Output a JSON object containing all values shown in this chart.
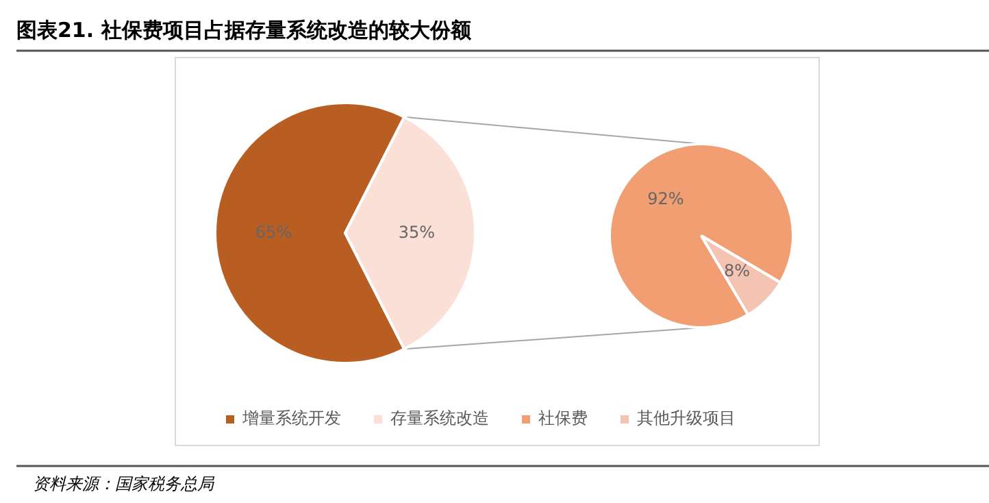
{
  "chart_data": [
    {
      "type": "pie",
      "title": "图表21. 社保费项目占据存量系统改造的较大份额",
      "categories": [
        "增量系统开发",
        "存量系统改造"
      ],
      "values": [
        65,
        35
      ],
      "colors": [
        "#b85e22",
        "#fbe0d8"
      ],
      "value_labels": [
        "65%",
        "35%"
      ],
      "legend": "bottom",
      "annotations": [
        "资料来源：国家税务总局"
      ]
    },
    {
      "type": "pie",
      "categories": [
        "社保费",
        "其他升级项目"
      ],
      "values": [
        92,
        8
      ],
      "colors": [
        "#f09e72",
        "#f5c3b1"
      ],
      "value_labels": [
        "92%",
        "8%"
      ],
      "legend": "bottom"
    }
  ]
}
